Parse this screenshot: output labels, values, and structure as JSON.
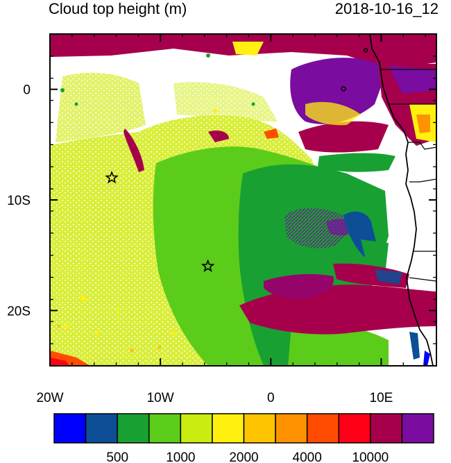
{
  "title": "Cloud top height (m)",
  "timestamp": "2018-10-16_12",
  "map": {
    "lon_range": [
      -20,
      15
    ],
    "lat_range": [
      -25,
      5
    ],
    "x_ticks": [
      {
        "value": -20,
        "label": "20W"
      },
      {
        "value": -10,
        "label": "10W"
      },
      {
        "value": 0,
        "label": "0"
      },
      {
        "value": 10,
        "label": "10E"
      }
    ],
    "y_ticks": [
      {
        "value": 0,
        "label": "0"
      },
      {
        "value": -10,
        "label": "10S"
      },
      {
        "value": -20,
        "label": "20S"
      }
    ],
    "markers": [
      {
        "name": "star-marker",
        "lon": -14.4,
        "lat": -8.0
      },
      {
        "name": "star-marker",
        "lon": -5.7,
        "lat": -16.0
      }
    ]
  },
  "colorbar": {
    "colors": [
      "#0000ff",
      "#0c4f97",
      "#19a032",
      "#5ccc1a",
      "#cbec10",
      "#fff010",
      "#ffc400",
      "#ff9200",
      "#ff4c00",
      "#ff0018",
      "#a6004c",
      "#7a0ca0"
    ],
    "labels": [
      "500",
      "1000",
      "2000",
      "4000",
      "10000"
    ]
  }
}
